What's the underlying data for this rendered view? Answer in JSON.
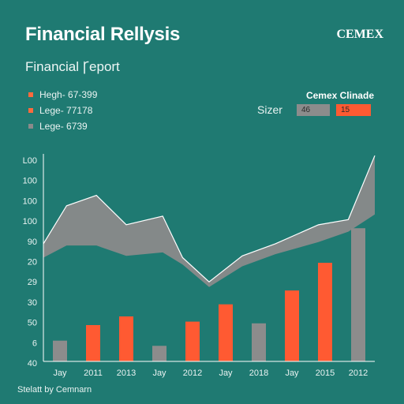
{
  "header": {
    "title": "Financial Rellysis",
    "brand": "CEMEX",
    "subtitle": "Financial Ꞅeport"
  },
  "legend": {
    "items": [
      {
        "label": "Hegh- 67-399",
        "color": "#ff6a3d"
      },
      {
        "label": "Lege- 77178",
        "color": "#ff6a3d"
      },
      {
        "label": "Lege- 6739",
        "color": "#8a8a8a"
      }
    ]
  },
  "panel": {
    "title": "Cemex Clinade",
    "label": "Sizer",
    "values": [
      "46",
      "15"
    ]
  },
  "footer": {
    "text": "Stelatt by Cemnarn"
  },
  "chart_data": {
    "type": "bar",
    "categories": [
      "Jay",
      "2011",
      "2013",
      "Jay",
      "2012",
      "Jay",
      "2018",
      "Jay",
      "2015",
      "2012"
    ],
    "y_tick_labels": [
      "L00",
      "100",
      "100",
      "100",
      "90",
      "20",
      "29",
      "30",
      "50",
      "6",
      "40"
    ],
    "bars": [
      {
        "value": 12,
        "color": "#8c8c8c"
      },
      {
        "value": 21,
        "color": "#ff5a32"
      },
      {
        "value": 26,
        "color": "#ff5a32"
      },
      {
        "value": 9,
        "color": "#8c8c8c"
      },
      {
        "value": 23,
        "color": "#ff5a32"
      },
      {
        "value": 33,
        "color": "#ff5a32"
      },
      {
        "value": 22,
        "color": "#8c8c8c"
      },
      {
        "value": 41,
        "color": "#ff5a32"
      },
      {
        "value": 57,
        "color": "#ff5a32"
      },
      {
        "value": 77,
        "color": "#8c8c8c"
      }
    ],
    "area": {
      "x": [
        0,
        0.7,
        1.6,
        2.5,
        3.6,
        4.2,
        5.0,
        6.0,
        7.0,
        8.3,
        9.2,
        10.0
      ],
      "upper": [
        68,
        90,
        96,
        79,
        84,
        60,
        46,
        61,
        68,
        79,
        82,
        119
      ],
      "lower": [
        60,
        67,
        67,
        61,
        63,
        56,
        43,
        55,
        62,
        69,
        75,
        85
      ],
      "fill": "#8a8a8a",
      "stroke": "#ffffff"
    },
    "ylim": [
      0,
      120
    ],
    "grid": false
  }
}
